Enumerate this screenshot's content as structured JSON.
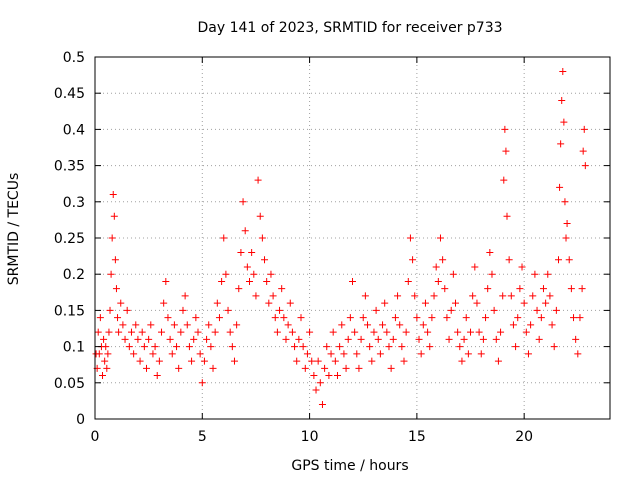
{
  "chart_data": {
    "type": "scatter",
    "title": "Day 141 of 2023, SRMTID for receiver p733",
    "xlabel": "GPS time / hours",
    "ylabel": "SRMTID / TECUs",
    "xlim": [
      0,
      24.0
    ],
    "ylim": [
      0,
      0.5
    ],
    "x_ticks": [
      0,
      5,
      10,
      15,
      20
    ],
    "x_tick_labels": [
      "0",
      "5",
      "10",
      "15",
      "20"
    ],
    "y_ticks": [
      0,
      0.05,
      0.1,
      0.15,
      0.2,
      0.25,
      0.3,
      0.35,
      0.4,
      0.45,
      0.5
    ],
    "y_tick_labels": [
      "0",
      "0.05",
      "0.1",
      "0.15",
      "0.2",
      "0.25",
      "0.3",
      "0.35",
      "0.4",
      "0.45",
      "0.5"
    ],
    "grid": true,
    "marker": "+",
    "color": "#ff0000",
    "series": [
      {
        "name": "SRMTID",
        "points": [
          [
            0.05,
            0.09
          ],
          [
            0.1,
            0.07
          ],
          [
            0.15,
            0.12
          ],
          [
            0.2,
            0.09
          ],
          [
            0.25,
            0.14
          ],
          [
            0.3,
            0.1
          ],
          [
            0.35,
            0.06
          ],
          [
            0.4,
            0.11
          ],
          [
            0.45,
            0.08
          ],
          [
            0.5,
            0.1
          ],
          [
            0.55,
            0.07
          ],
          [
            0.6,
            0.09
          ],
          [
            0.65,
            0.12
          ],
          [
            0.7,
            0.15
          ],
          [
            0.75,
            0.2
          ],
          [
            0.8,
            0.25
          ],
          [
            0.85,
            0.31
          ],
          [
            0.9,
            0.28
          ],
          [
            0.95,
            0.22
          ],
          [
            1.0,
            0.18
          ],
          [
            1.05,
            0.14
          ],
          [
            1.1,
            0.12
          ],
          [
            1.2,
            0.16
          ],
          [
            1.3,
            0.13
          ],
          [
            1.4,
            0.11
          ],
          [
            1.5,
            0.15
          ],
          [
            1.6,
            0.1
          ],
          [
            1.7,
            0.12
          ],
          [
            1.8,
            0.09
          ],
          [
            1.9,
            0.13
          ],
          [
            2.0,
            0.11
          ],
          [
            2.1,
            0.08
          ],
          [
            2.2,
            0.12
          ],
          [
            2.3,
            0.1
          ],
          [
            2.4,
            0.07
          ],
          [
            2.5,
            0.11
          ],
          [
            2.6,
            0.13
          ],
          [
            2.7,
            0.09
          ],
          [
            2.8,
            0.1
          ],
          [
            2.9,
            0.06
          ],
          [
            3.0,
            0.08
          ],
          [
            3.1,
            0.12
          ],
          [
            3.2,
            0.16
          ],
          [
            3.3,
            0.19
          ],
          [
            3.4,
            0.14
          ],
          [
            3.5,
            0.11
          ],
          [
            3.6,
            0.09
          ],
          [
            3.7,
            0.13
          ],
          [
            3.8,
            0.1
          ],
          [
            3.9,
            0.07
          ],
          [
            4.0,
            0.12
          ],
          [
            4.1,
            0.15
          ],
          [
            4.2,
            0.17
          ],
          [
            4.3,
            0.13
          ],
          [
            4.4,
            0.1
          ],
          [
            4.5,
            0.08
          ],
          [
            4.6,
            0.11
          ],
          [
            4.7,
            0.14
          ],
          [
            4.8,
            0.12
          ],
          [
            4.9,
            0.09
          ],
          [
            5.0,
            0.05
          ],
          [
            5.1,
            0.08
          ],
          [
            5.2,
            0.11
          ],
          [
            5.3,
            0.13
          ],
          [
            5.4,
            0.1
          ],
          [
            5.5,
            0.07
          ],
          [
            5.6,
            0.12
          ],
          [
            5.7,
            0.16
          ],
          [
            5.8,
            0.14
          ],
          [
            5.9,
            0.19
          ],
          [
            6.0,
            0.25
          ],
          [
            6.1,
            0.2
          ],
          [
            6.2,
            0.15
          ],
          [
            6.3,
            0.12
          ],
          [
            6.4,
            0.1
          ],
          [
            6.5,
            0.08
          ],
          [
            6.6,
            0.13
          ],
          [
            6.7,
            0.18
          ],
          [
            6.8,
            0.23
          ],
          [
            6.9,
            0.3
          ],
          [
            7.0,
            0.26
          ],
          [
            7.1,
            0.21
          ],
          [
            7.2,
            0.19
          ],
          [
            7.3,
            0.23
          ],
          [
            7.4,
            0.2
          ],
          [
            7.5,
            0.17
          ],
          [
            7.6,
            0.33
          ],
          [
            7.7,
            0.28
          ],
          [
            7.8,
            0.25
          ],
          [
            7.9,
            0.22
          ],
          [
            8.0,
            0.19
          ],
          [
            8.1,
            0.16
          ],
          [
            8.2,
            0.2
          ],
          [
            8.3,
            0.17
          ],
          [
            8.4,
            0.14
          ],
          [
            8.5,
            0.12
          ],
          [
            8.6,
            0.15
          ],
          [
            8.7,
            0.18
          ],
          [
            8.8,
            0.14
          ],
          [
            8.9,
            0.11
          ],
          [
            9.0,
            0.13
          ],
          [
            9.1,
            0.16
          ],
          [
            9.2,
            0.12
          ],
          [
            9.3,
            0.1
          ],
          [
            9.4,
            0.08
          ],
          [
            9.5,
            0.11
          ],
          [
            9.6,
            0.14
          ],
          [
            9.7,
            0.1
          ],
          [
            9.8,
            0.07
          ],
          [
            9.9,
            0.09
          ],
          [
            10.0,
            0.12
          ],
          [
            10.1,
            0.08
          ],
          [
            10.2,
            0.06
          ],
          [
            10.3,
            0.04
          ],
          [
            10.4,
            0.08
          ],
          [
            10.5,
            0.05
          ],
          [
            10.6,
            0.02
          ],
          [
            10.7,
            0.07
          ],
          [
            10.8,
            0.1
          ],
          [
            10.9,
            0.06
          ],
          [
            11.0,
            0.09
          ],
          [
            11.1,
            0.12
          ],
          [
            11.2,
            0.08
          ],
          [
            11.3,
            0.06
          ],
          [
            11.4,
            0.1
          ],
          [
            11.5,
            0.13
          ],
          [
            11.6,
            0.09
          ],
          [
            11.7,
            0.07
          ],
          [
            11.8,
            0.11
          ],
          [
            11.9,
            0.14
          ],
          [
            12.0,
            0.19
          ],
          [
            12.1,
            0.12
          ],
          [
            12.2,
            0.09
          ],
          [
            12.3,
            0.07
          ],
          [
            12.4,
            0.11
          ],
          [
            12.5,
            0.14
          ],
          [
            12.6,
            0.17
          ],
          [
            12.7,
            0.13
          ],
          [
            12.8,
            0.1
          ],
          [
            12.9,
            0.08
          ],
          [
            13.0,
            0.12
          ],
          [
            13.1,
            0.15
          ],
          [
            13.2,
            0.11
          ],
          [
            13.3,
            0.09
          ],
          [
            13.4,
            0.13
          ],
          [
            13.5,
            0.16
          ],
          [
            13.6,
            0.12
          ],
          [
            13.7,
            0.1
          ],
          [
            13.8,
            0.07
          ],
          [
            13.9,
            0.11
          ],
          [
            14.0,
            0.14
          ],
          [
            14.1,
            0.17
          ],
          [
            14.2,
            0.13
          ],
          [
            14.3,
            0.1
          ],
          [
            14.4,
            0.08
          ],
          [
            14.5,
            0.12
          ],
          [
            14.6,
            0.19
          ],
          [
            14.7,
            0.25
          ],
          [
            14.8,
            0.22
          ],
          [
            14.9,
            0.17
          ],
          [
            15.0,
            0.14
          ],
          [
            15.1,
            0.11
          ],
          [
            15.2,
            0.09
          ],
          [
            15.3,
            0.13
          ],
          [
            15.4,
            0.16
          ],
          [
            15.5,
            0.12
          ],
          [
            15.6,
            0.1
          ],
          [
            15.7,
            0.14
          ],
          [
            15.8,
            0.17
          ],
          [
            15.9,
            0.21
          ],
          [
            16.0,
            0.19
          ],
          [
            16.1,
            0.25
          ],
          [
            16.2,
            0.22
          ],
          [
            16.3,
            0.18
          ],
          [
            16.4,
            0.14
          ],
          [
            16.5,
            0.11
          ],
          [
            16.6,
            0.15
          ],
          [
            16.7,
            0.2
          ],
          [
            16.8,
            0.16
          ],
          [
            16.9,
            0.12
          ],
          [
            17.0,
            0.1
          ],
          [
            17.1,
            0.08
          ],
          [
            17.2,
            0.11
          ],
          [
            17.3,
            0.14
          ],
          [
            17.4,
            0.09
          ],
          [
            17.5,
            0.12
          ],
          [
            17.6,
            0.17
          ],
          [
            17.7,
            0.21
          ],
          [
            17.8,
            0.16
          ],
          [
            17.9,
            0.12
          ],
          [
            18.0,
            0.09
          ],
          [
            18.1,
            0.11
          ],
          [
            18.2,
            0.14
          ],
          [
            18.3,
            0.18
          ],
          [
            18.4,
            0.23
          ],
          [
            18.5,
            0.2
          ],
          [
            18.6,
            0.15
          ],
          [
            18.7,
            0.11
          ],
          [
            18.8,
            0.08
          ],
          [
            18.9,
            0.12
          ],
          [
            19.0,
            0.17
          ],
          [
            19.05,
            0.33
          ],
          [
            19.1,
            0.4
          ],
          [
            19.15,
            0.37
          ],
          [
            19.2,
            0.28
          ],
          [
            19.3,
            0.22
          ],
          [
            19.4,
            0.17
          ],
          [
            19.5,
            0.13
          ],
          [
            19.6,
            0.1
          ],
          [
            19.7,
            0.14
          ],
          [
            19.8,
            0.18
          ],
          [
            19.9,
            0.21
          ],
          [
            20.0,
            0.16
          ],
          [
            20.1,
            0.12
          ],
          [
            20.2,
            0.09
          ],
          [
            20.3,
            0.13
          ],
          [
            20.4,
            0.17
          ],
          [
            20.5,
            0.2
          ],
          [
            20.6,
            0.15
          ],
          [
            20.7,
            0.11
          ],
          [
            20.8,
            0.14
          ],
          [
            20.9,
            0.18
          ],
          [
            21.0,
            0.16
          ],
          [
            21.1,
            0.2
          ],
          [
            21.2,
            0.17
          ],
          [
            21.3,
            0.13
          ],
          [
            21.4,
            0.1
          ],
          [
            21.5,
            0.15
          ],
          [
            21.6,
            0.22
          ],
          [
            21.65,
            0.32
          ],
          [
            21.7,
            0.38
          ],
          [
            21.75,
            0.44
          ],
          [
            21.8,
            0.48
          ],
          [
            21.85,
            0.41
          ],
          [
            21.9,
            0.3
          ],
          [
            21.95,
            0.25
          ],
          [
            22.0,
            0.27
          ],
          [
            22.1,
            0.22
          ],
          [
            22.2,
            0.18
          ],
          [
            22.3,
            0.14
          ],
          [
            22.4,
            0.11
          ],
          [
            22.5,
            0.09
          ],
          [
            22.6,
            0.14
          ],
          [
            22.7,
            0.18
          ],
          [
            22.75,
            0.37
          ],
          [
            22.8,
            0.4
          ],
          [
            22.85,
            0.35
          ]
        ]
      }
    ]
  }
}
